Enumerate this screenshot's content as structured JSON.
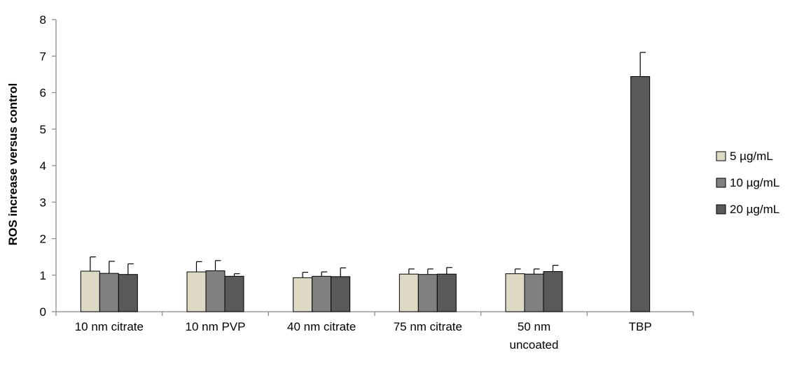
{
  "chart_data": {
    "type": "bar",
    "title": "",
    "xlabel": "",
    "ylabel": "ROS increase versus control",
    "ylim": [
      0,
      8
    ],
    "yticks": [
      0,
      1,
      2,
      3,
      4,
      5,
      6,
      7,
      8
    ],
    "grid": false,
    "legend_position": "right",
    "categories": [
      [
        "10 nm citrate"
      ],
      [
        "10 nm PVP"
      ],
      [
        "40 nm citrate"
      ],
      [
        "75 nm citrate"
      ],
      [
        "50 nm",
        "uncoated"
      ],
      [
        "TBP"
      ]
    ],
    "series": [
      {
        "name": "5 µg/mL",
        "color": "#ddd9c4",
        "values": [
          1.11,
          1.09,
          0.93,
          1.03,
          1.04,
          null
        ],
        "errors": [
          0.39,
          0.28,
          0.15,
          0.14,
          0.13,
          null
        ]
      },
      {
        "name": "10 µg/mL",
        "color": "#808080",
        "values": [
          1.05,
          1.12,
          0.97,
          1.02,
          1.03,
          null
        ],
        "errors": [
          0.33,
          0.28,
          0.12,
          0.15,
          0.14,
          null
        ]
      },
      {
        "name": "20 µg/mL",
        "color": "#595959",
        "values": [
          1.02,
          0.97,
          0.96,
          1.03,
          1.1,
          6.44
        ],
        "errors": [
          0.29,
          0.07,
          0.24,
          0.18,
          0.17,
          0.66
        ]
      }
    ]
  }
}
